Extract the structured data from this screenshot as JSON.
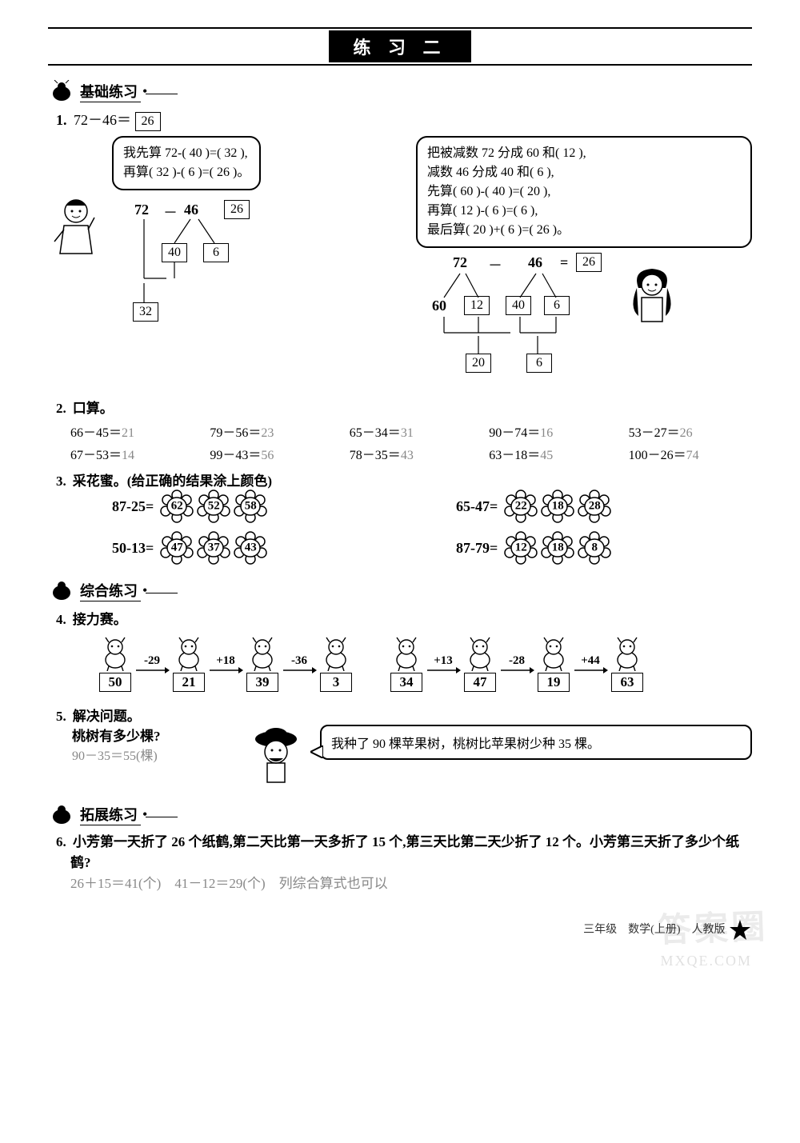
{
  "title": "练 习 二",
  "sections": {
    "basic": "基础练习",
    "comprehensive": "综合练习",
    "extension": "拓展练习"
  },
  "q1": {
    "num": "1.",
    "expr": "72－46＝",
    "ans": "26",
    "left_bubble_l1": "我先算 72-(  40  )=(  32  ),",
    "left_bubble_l2": "再算(  32  )-(  6  )=(  26  )。",
    "left_expr_a": "72",
    "left_minus": "－",
    "left_expr_b": "46",
    "left_box_ans": "26",
    "left_d1": "40",
    "left_d2": "6",
    "left_d3": "32",
    "right_bubble_l1": "把被减数 72 分成 60 和(  12  ),",
    "right_bubble_l2": "减数 46 分成 40 和(  6  ),",
    "right_bubble_l3": "先算(  60  )-(  40  )=(  20  ),",
    "right_bubble_l4": "再算(  12  )-(  6  )=(  6  ),",
    "right_bubble_l5": "最后算(  20  )+(  6  )=(  26  )。",
    "r_a": "72",
    "r_minus": "－",
    "r_b": "46",
    "r_eq": "=",
    "r_ans": "26",
    "r_d1": "60",
    "r_d2": "12",
    "r_d3": "40",
    "r_d4": "6",
    "r_d5": "20",
    "r_d6": "6"
  },
  "q2": {
    "num": "2.",
    "title": "口算。",
    "items": [
      {
        "q": "66－45＝",
        "a": "21"
      },
      {
        "q": "79－56＝",
        "a": "23"
      },
      {
        "q": "65－34＝",
        "a": "31"
      },
      {
        "q": "90－74＝",
        "a": "16"
      },
      {
        "q": "53－27＝",
        "a": "26"
      },
      {
        "q": "67－53＝",
        "a": "14"
      },
      {
        "q": "99－43＝",
        "a": "56"
      },
      {
        "q": "78－35＝",
        "a": "43"
      },
      {
        "q": "63－18＝",
        "a": "45"
      },
      {
        "q": "100－26＝",
        "a": "74"
      }
    ]
  },
  "q3": {
    "num": "3.",
    "title": "采花蜜。(给正确的结果涂上颜色)",
    "rows": [
      {
        "q": "87-25=",
        "opts": [
          "62",
          "52",
          "58"
        ]
      },
      {
        "q": "65-47=",
        "opts": [
          "22",
          "18",
          "28"
        ]
      },
      {
        "q": "50-13=",
        "opts": [
          "47",
          "37",
          "43"
        ]
      },
      {
        "q": "87-79=",
        "opts": [
          "12",
          "18",
          "8"
        ]
      }
    ]
  },
  "q4": {
    "num": "4.",
    "title": "接力赛。",
    "chain1": {
      "start": "50",
      "ops": [
        "-29",
        "+18",
        "-36"
      ],
      "vals": [
        "21",
        "39",
        "3"
      ]
    },
    "chain2": {
      "start": "34",
      "ops": [
        "+13",
        "-28",
        "+44"
      ],
      "vals": [
        "47",
        "19",
        "63"
      ]
    }
  },
  "q5": {
    "num": "5.",
    "title": "解决问题。",
    "question": "桃树有多少棵?",
    "work": "90－35＝55(棵)",
    "speech": "我种了 90 棵苹果树，桃树比苹果树少种 35 棵。"
  },
  "q6": {
    "num": "6.",
    "text": "小芳第一天折了 26 个纸鹤,第二天比第一天多折了 15 个,第三天比第二天少折了 12 个。小芳第三天折了多少个纸鹤?",
    "work": "26＋15＝41(个)　41－12＝29(个)　列综合算式也可以"
  },
  "footer": "三年级　数学(上册)　人教版",
  "watermark": "答案圈",
  "wm2": "MXQE.COM"
}
